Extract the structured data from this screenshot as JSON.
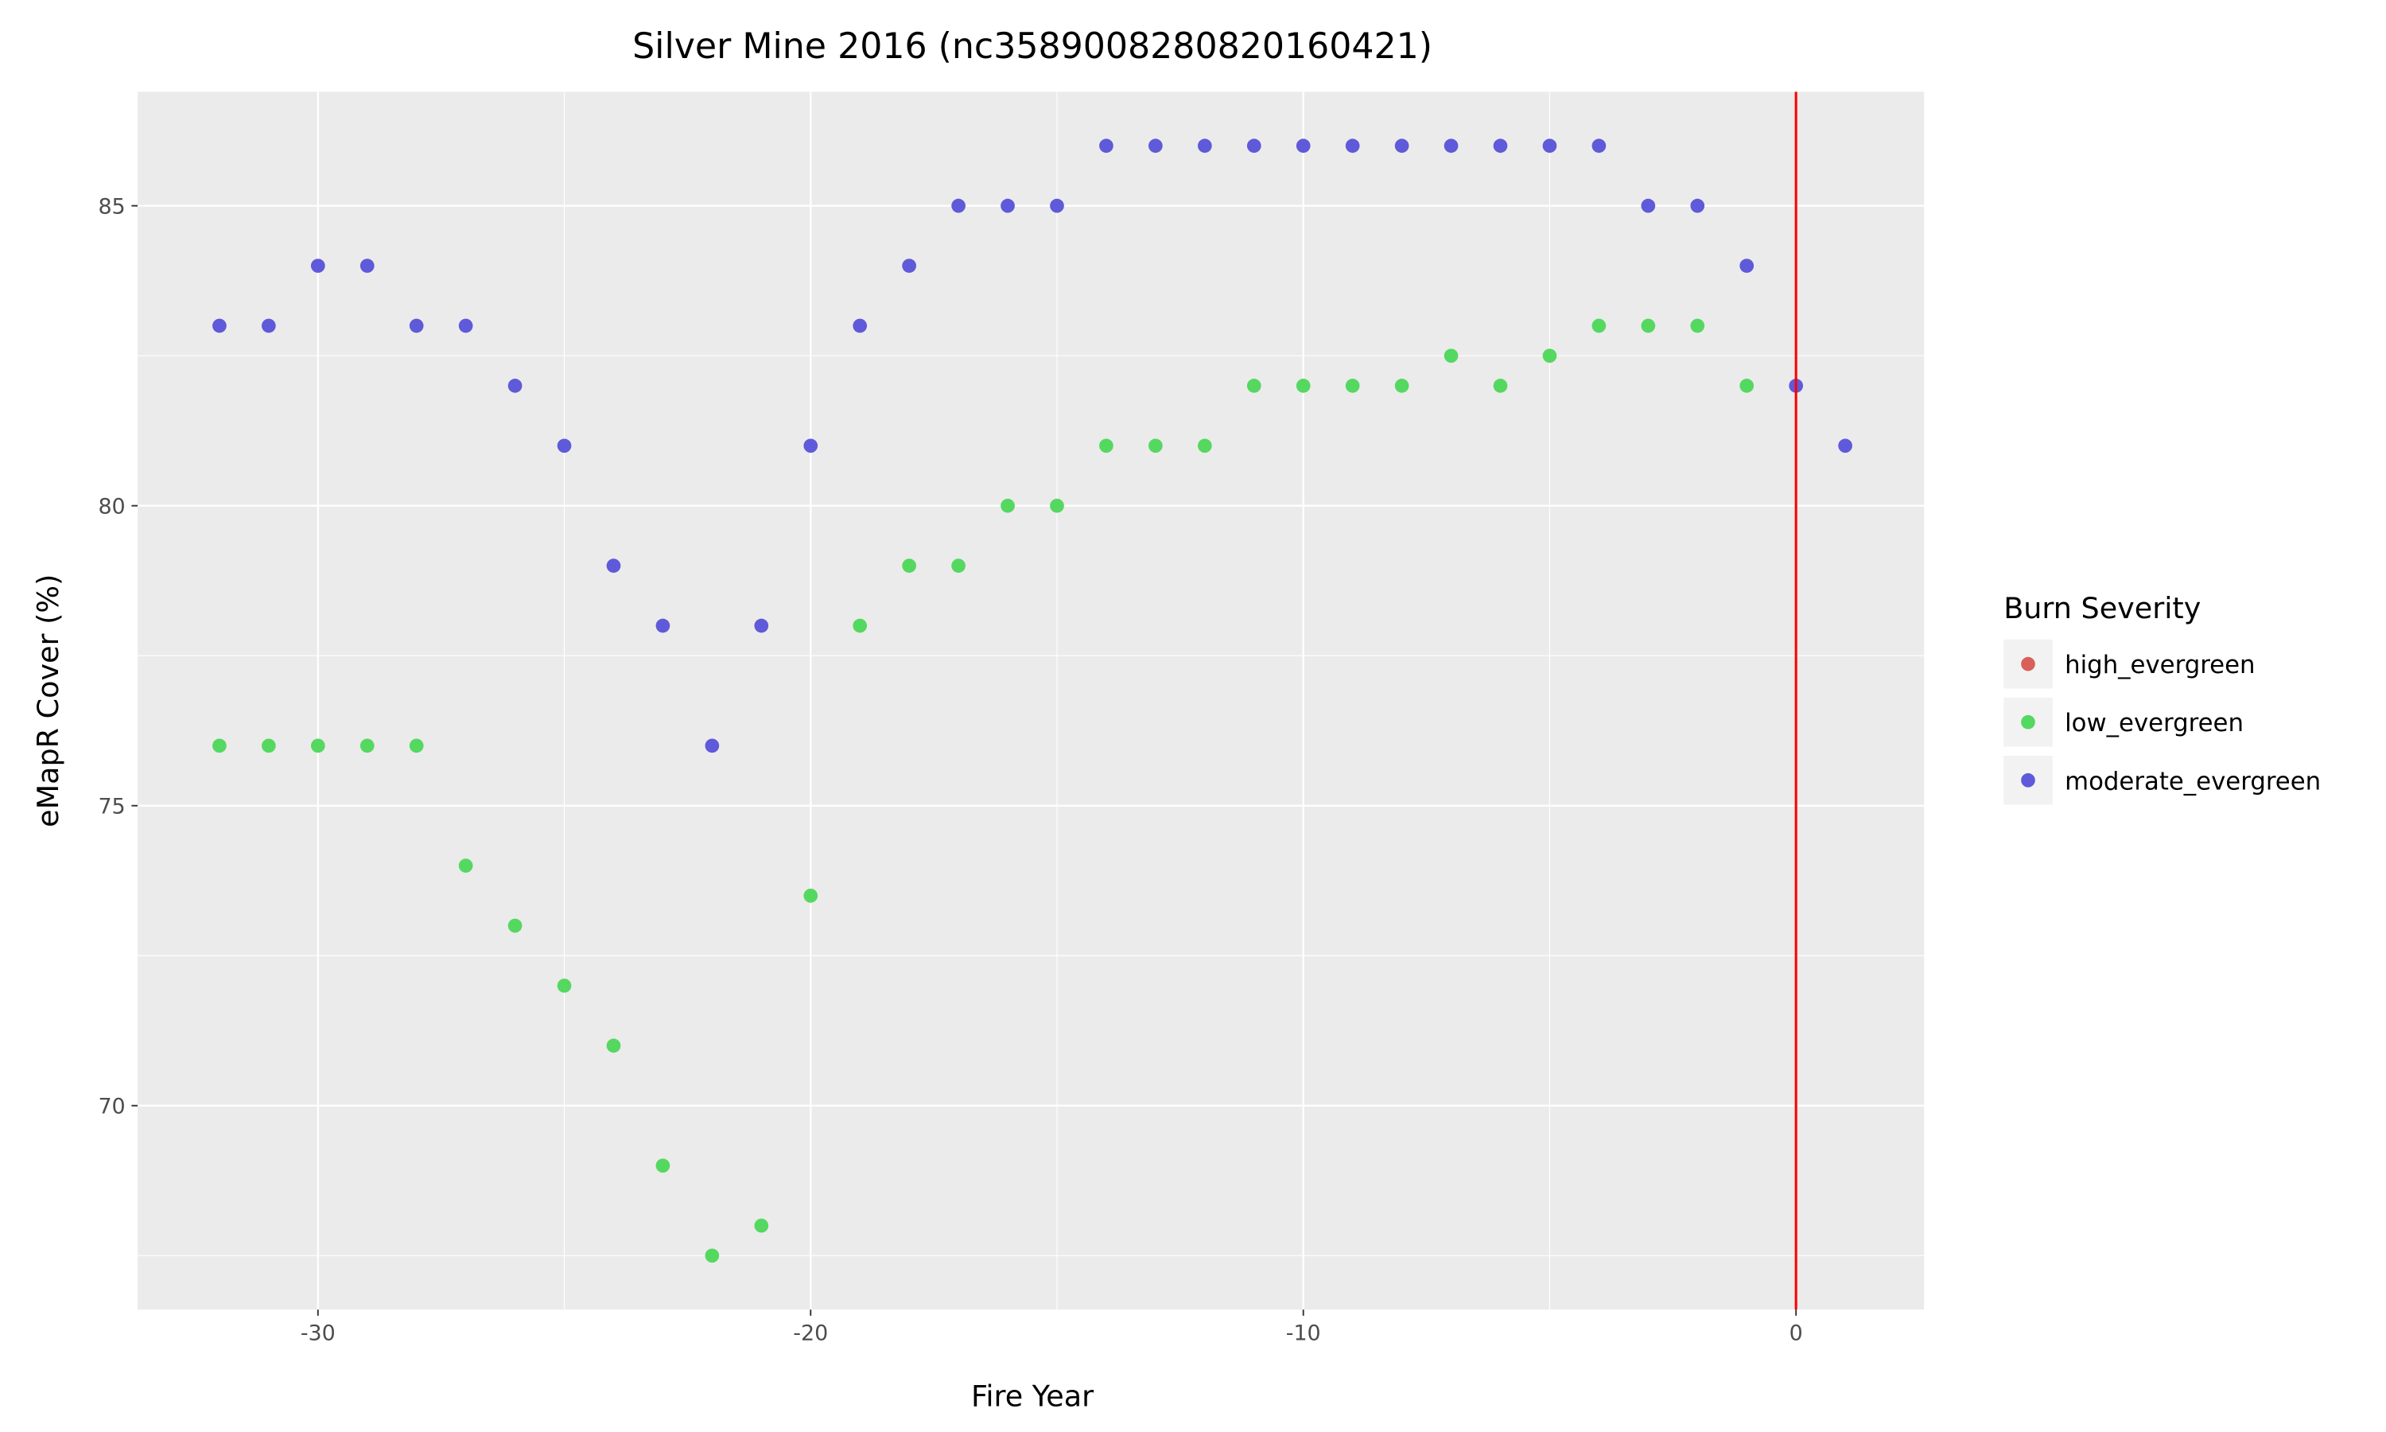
{
  "chart_data": {
    "type": "scatter",
    "title": "Silver Mine 2016 (nc3589008280820160421)",
    "xlabel": "Fire Year",
    "ylabel": "eMapR Cover (%)",
    "xlim": [
      -33.66,
      2.6
    ],
    "ylim": [
      66.6,
      86.9
    ],
    "xticks": [
      -30,
      -20,
      -10,
      0
    ],
    "yticks": [
      70,
      75,
      80,
      85
    ],
    "grid": true,
    "vline": {
      "x": 0,
      "color": "#ff0000"
    },
    "legend": {
      "title": "Burn Severity",
      "placement": "right"
    },
    "series": [
      {
        "name": "high_evergreen",
        "color": "#d95f58",
        "x": [],
        "y": []
      },
      {
        "name": "low_evergreen",
        "color": "#55d860",
        "x": [
          -32,
          -31,
          -30,
          -29,
          -28,
          -27,
          -26,
          -25,
          -24,
          -23,
          -22,
          -21,
          -20,
          -19,
          -18,
          -17,
          -16,
          -15,
          -14,
          -13,
          -12,
          -11,
          -10,
          -9,
          -8,
          -7,
          -6,
          -5,
          -4,
          -3,
          -2,
          -1
        ],
        "y": [
          76,
          76,
          76,
          76,
          76,
          74,
          73,
          72,
          71,
          69,
          67.5,
          68,
          73.5,
          78,
          79,
          79,
          80,
          80,
          81,
          81,
          81,
          82,
          82,
          82,
          82,
          82.5,
          82,
          82.5,
          83,
          83,
          83,
          82
        ]
      },
      {
        "name": "moderate_evergreen",
        "color": "#5e5ad9",
        "x": [
          -32,
          -31,
          -30,
          -29,
          -28,
          -27,
          -26,
          -25,
          -24,
          -23,
          -22,
          -21,
          -20,
          -19,
          -18,
          -17,
          -16,
          -15,
          -14,
          -13,
          -12,
          -11,
          -10,
          -9,
          -8,
          -7,
          -6,
          -5,
          -4,
          -3,
          -2,
          -1,
          0,
          1
        ],
        "y": [
          83,
          83,
          84,
          84,
          83,
          83,
          82,
          81,
          79,
          78,
          76,
          78,
          81,
          83,
          84,
          85,
          85,
          85,
          86,
          86,
          86,
          86,
          86,
          86,
          86,
          86,
          86,
          86,
          86,
          85,
          85,
          84,
          82,
          81
        ]
      }
    ]
  }
}
